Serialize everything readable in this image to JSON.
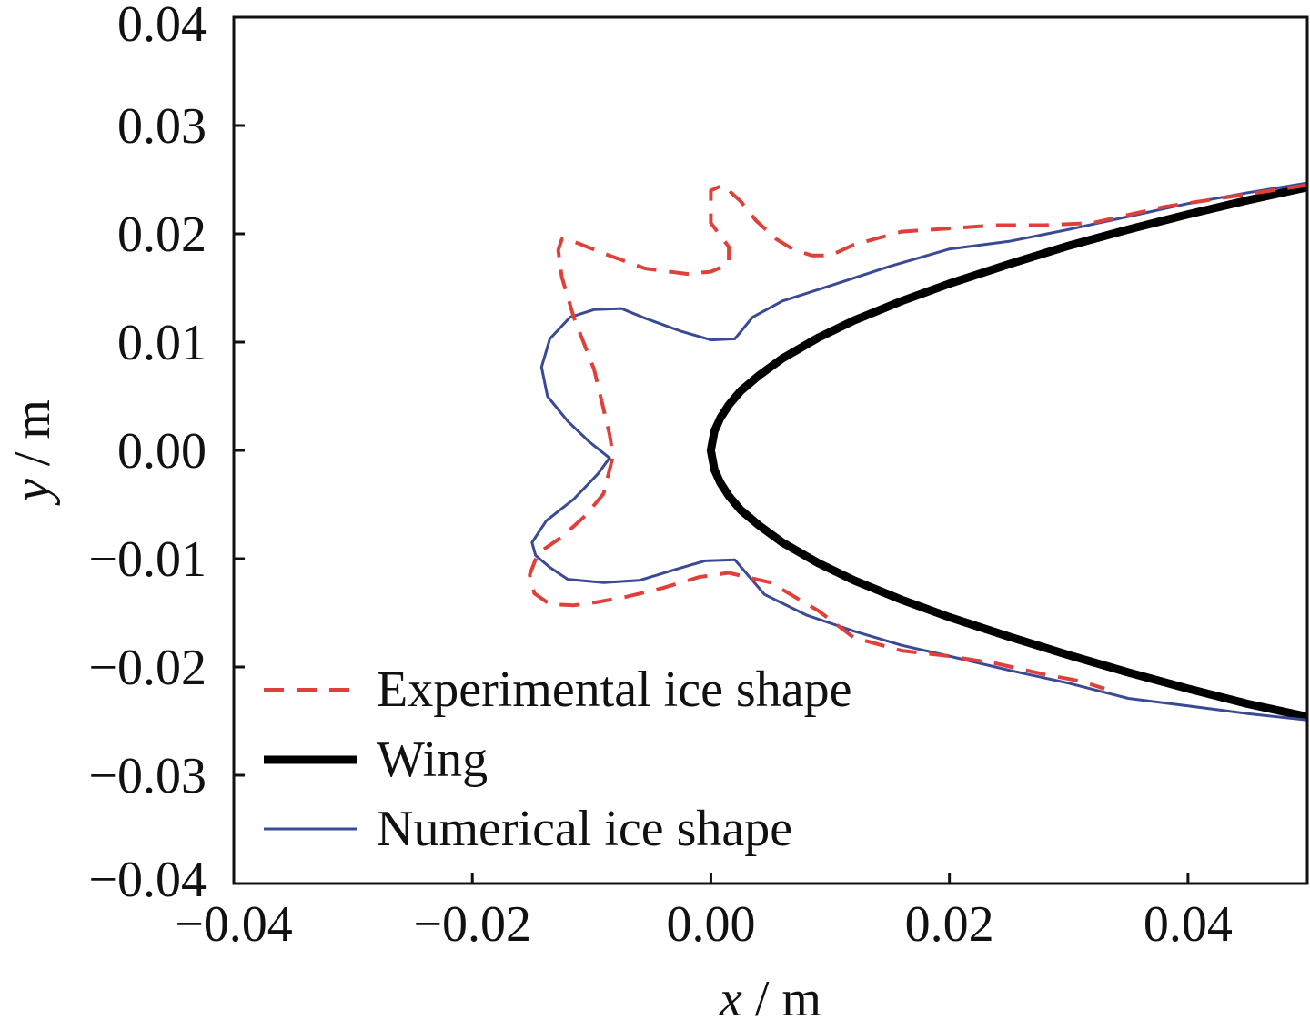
{
  "chart_data": {
    "type": "line",
    "title": "",
    "xlabel": "x / m",
    "ylabel": "y / m",
    "xlabel_var": "x",
    "ylabel_var": "y",
    "axis_unit_sep": " / m",
    "xlim": [
      -0.04,
      0.05
    ],
    "ylim": [
      -0.04,
      0.04
    ],
    "xticks": [
      -0.04,
      -0.02,
      0.0,
      0.02,
      0.04
    ],
    "yticks": [
      0.04,
      0.03,
      0.02,
      0.01,
      0.0,
      -0.01,
      -0.02,
      -0.03,
      -0.04
    ],
    "xtick_labels": [
      "−0.04",
      "−0.02",
      "0.00",
      "0.02",
      "0.04"
    ],
    "ytick_labels": [
      "0.04",
      "0.03",
      "0.02",
      "0.01",
      "0.00",
      "−0.01",
      "−0.02",
      "−0.03",
      "−0.04"
    ],
    "grid": false,
    "legend_position": "bottom-left",
    "series": [
      {
        "name": "Experimental ice shape",
        "style": "dashed",
        "color": "#e0403a",
        "points": [
          [
            0.05,
            0.0245
          ],
          [
            0.044,
            0.0235
          ],
          [
            0.038,
            0.0225
          ],
          [
            0.032,
            0.021
          ],
          [
            0.028,
            0.0208
          ],
          [
            0.024,
            0.0208
          ],
          [
            0.02,
            0.0205
          ],
          [
            0.016,
            0.0202
          ],
          [
            0.012,
            0.019
          ],
          [
            0.01,
            0.018
          ],
          [
            0.0085,
            0.018
          ],
          [
            0.007,
            0.0185
          ],
          [
            0.0055,
            0.0195
          ],
          [
            0.0038,
            0.0212
          ],
          [
            0.0025,
            0.023
          ],
          [
            0.001,
            0.0245
          ],
          [
            0.0,
            0.024
          ],
          [
            0.0,
            0.021
          ],
          [
            0.0015,
            0.0188
          ],
          [
            0.0015,
            0.0172
          ],
          [
            0.0,
            0.0165
          ],
          [
            -0.002,
            0.0163
          ],
          [
            -0.0055,
            0.0168
          ],
          [
            -0.009,
            0.0182
          ],
          [
            -0.012,
            0.0195
          ],
          [
            -0.0125,
            0.0195
          ],
          [
            -0.0128,
            0.0185
          ],
          [
            -0.0125,
            0.016
          ],
          [
            -0.0115,
            0.0123
          ],
          [
            -0.0098,
            0.0075
          ],
          [
            -0.0085,
            0.0015
          ],
          [
            -0.0082,
            -0.0005
          ],
          [
            -0.009,
            -0.004
          ],
          [
            -0.0105,
            -0.006
          ],
          [
            -0.0125,
            -0.008
          ],
          [
            -0.0145,
            -0.0095
          ],
          [
            -0.0152,
            -0.0115
          ],
          [
            -0.0148,
            -0.0132
          ],
          [
            -0.0135,
            -0.0142
          ],
          [
            -0.0115,
            -0.0143
          ],
          [
            -0.0095,
            -0.014
          ],
          [
            -0.007,
            -0.0135
          ],
          [
            -0.004,
            -0.0127
          ],
          [
            -0.001,
            -0.0117
          ],
          [
            0.0015,
            -0.0113
          ],
          [
            0.005,
            -0.0122
          ],
          [
            0.009,
            -0.0148
          ],
          [
            0.012,
            -0.0173
          ],
          [
            0.016,
            -0.0185
          ],
          [
            0.02,
            -0.019
          ],
          [
            0.024,
            -0.0197
          ],
          [
            0.028,
            -0.0207
          ],
          [
            0.031,
            -0.0213
          ],
          [
            0.033,
            -0.022
          ]
        ]
      },
      {
        "name": "Wing",
        "style": "solid-thick",
        "color": "#000000",
        "points": [
          [
            0.05,
            0.0243
          ],
          [
            0.045,
            0.0231
          ],
          [
            0.04,
            0.0218
          ],
          [
            0.035,
            0.0204
          ],
          [
            0.03,
            0.0189
          ],
          [
            0.025,
            0.0172
          ],
          [
            0.02,
            0.0154
          ],
          [
            0.016,
            0.0138
          ],
          [
            0.012,
            0.012
          ],
          [
            0.009,
            0.0104
          ],
          [
            0.006,
            0.0085
          ],
          [
            0.004,
            0.0069
          ],
          [
            0.0025,
            0.0055
          ],
          [
            0.0015,
            0.0042
          ],
          [
            0.0008,
            0.003
          ],
          [
            0.0003,
            0.0018
          ],
          [
            0.0,
            0.0
          ],
          [
            0.0003,
            -0.0018
          ],
          [
            0.0008,
            -0.003
          ],
          [
            0.0015,
            -0.0042
          ],
          [
            0.0025,
            -0.0055
          ],
          [
            0.004,
            -0.0069
          ],
          [
            0.006,
            -0.0085
          ],
          [
            0.009,
            -0.0104
          ],
          [
            0.012,
            -0.012
          ],
          [
            0.016,
            -0.0138
          ],
          [
            0.02,
            -0.0154
          ],
          [
            0.025,
            -0.0172
          ],
          [
            0.03,
            -0.0189
          ],
          [
            0.035,
            -0.0205
          ],
          [
            0.04,
            -0.022
          ],
          [
            0.045,
            -0.0234
          ],
          [
            0.05,
            -0.0246
          ]
        ]
      },
      {
        "name": "Numerical ice shape",
        "style": "solid-thin",
        "color": "#3a4a94",
        "points": [
          [
            0.05,
            0.0247
          ],
          [
            0.045,
            0.0238
          ],
          [
            0.04,
            0.0228
          ],
          [
            0.035,
            0.0216
          ],
          [
            0.03,
            0.0204
          ],
          [
            0.025,
            0.0193
          ],
          [
            0.02,
            0.0186
          ],
          [
            0.015,
            0.017
          ],
          [
            0.01,
            0.0152
          ],
          [
            0.006,
            0.0138
          ],
          [
            0.0035,
            0.0123
          ],
          [
            0.002,
            0.0103
          ],
          [
            0.0,
            0.0102
          ],
          [
            -0.0025,
            0.011
          ],
          [
            -0.0055,
            0.0122
          ],
          [
            -0.0075,
            0.0131
          ],
          [
            -0.0098,
            0.013
          ],
          [
            -0.0118,
            0.0123
          ],
          [
            -0.0135,
            0.0103
          ],
          [
            -0.0142,
            0.0077
          ],
          [
            -0.0137,
            0.005
          ],
          [
            -0.012,
            0.0027
          ],
          [
            -0.0102,
            0.0008
          ],
          [
            -0.0085,
            -0.0007
          ],
          [
            -0.0095,
            -0.0022
          ],
          [
            -0.0115,
            -0.0045
          ],
          [
            -0.0138,
            -0.0065
          ],
          [
            -0.015,
            -0.0085
          ],
          [
            -0.0147,
            -0.0097
          ],
          [
            -0.0135,
            -0.0108
          ],
          [
            -0.012,
            -0.0119
          ],
          [
            -0.009,
            -0.0122
          ],
          [
            -0.006,
            -0.012
          ],
          [
            -0.003,
            -0.011
          ],
          [
            -0.0005,
            -0.0102
          ],
          [
            0.002,
            -0.0101
          ],
          [
            0.0045,
            -0.0133
          ],
          [
            0.008,
            -0.0152
          ],
          [
            0.012,
            -0.0167
          ],
          [
            0.016,
            -0.018
          ],
          [
            0.02,
            -0.019
          ],
          [
            0.025,
            -0.0203
          ],
          [
            0.03,
            -0.0215
          ],
          [
            0.035,
            -0.0229
          ],
          [
            0.04,
            -0.0236
          ],
          [
            0.045,
            -0.0243
          ],
          [
            0.05,
            -0.0249
          ]
        ]
      }
    ]
  }
}
